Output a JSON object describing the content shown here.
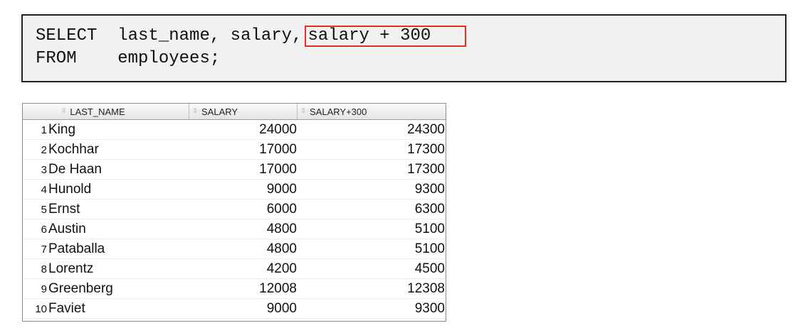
{
  "query": {
    "line1_keyword": "SELECT",
    "line1_columns": "last_name, salary,",
    "line1_highlight": "salary + 300",
    "line2_keyword": "FROM",
    "line2_table": "employees;"
  },
  "colors": {
    "highlight_border": "#e0302a",
    "code_background": "#f1f1f1"
  },
  "table": {
    "sort_icon": "sort-arrows-icon",
    "headers": [
      "LAST_NAME",
      "SALARY",
      "SALARY+300"
    ],
    "rows": [
      {
        "num": "1",
        "last_name": "King",
        "salary": "24000",
        "salary300": "24300"
      },
      {
        "num": "2",
        "last_name": "Kochhar",
        "salary": "17000",
        "salary300": "17300"
      },
      {
        "num": "3",
        "last_name": "De Haan",
        "salary": "17000",
        "salary300": "17300"
      },
      {
        "num": "4",
        "last_name": "Hunold",
        "salary": "9000",
        "salary300": "9300"
      },
      {
        "num": "5",
        "last_name": "Ernst",
        "salary": "6000",
        "salary300": "6300"
      },
      {
        "num": "6",
        "last_name": "Austin",
        "salary": "4800",
        "salary300": "5100"
      },
      {
        "num": "7",
        "last_name": "Pataballa",
        "salary": "4800",
        "salary300": "5100"
      },
      {
        "num": "8",
        "last_name": "Lorentz",
        "salary": "4200",
        "salary300": "4500"
      },
      {
        "num": "9",
        "last_name": "Greenberg",
        "salary": "12008",
        "salary300": "12308"
      },
      {
        "num": "10",
        "last_name": "Faviet",
        "salary": "9000",
        "salary300": "9300"
      }
    ]
  }
}
